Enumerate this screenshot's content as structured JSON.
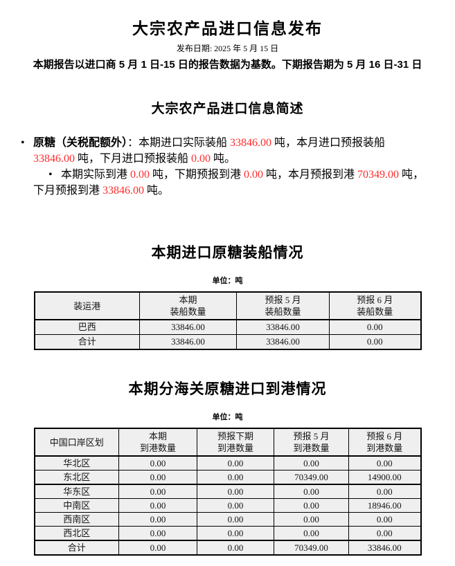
{
  "colors": {
    "highlight_red": "#ff2b2b",
    "cell_bg": "#efefef",
    "border": "#000000"
  },
  "document": {
    "title": "大宗农产品进口信息发布",
    "publish_date": "发布日期: 2025 年 5 月 15 日",
    "report_note": "本期报告以进口商 5 月 1 日-15 日的报告数据为基数。下期报告期为 5 月 16 日-31 日"
  },
  "summary": {
    "title": "大宗农产品进口信息简述",
    "bullets": [
      {
        "indent_first_line": false,
        "segments": [
          {
            "text": "原糖（关税配额外）",
            "bold": true,
            "red": false
          },
          {
            "text": "：本期进口实际装船 ",
            "bold": false,
            "red": false
          },
          {
            "text": "33846.00",
            "bold": false,
            "red": true
          },
          {
            "text": " 吨，本月进口预报装船 ",
            "bold": false,
            "red": false
          },
          {
            "text": "33846.00",
            "bold": false,
            "red": true
          },
          {
            "text": " 吨，下月进口预报装船 ",
            "bold": false,
            "red": false
          },
          {
            "text": "0.00",
            "bold": false,
            "red": true
          },
          {
            "text": " 吨。",
            "bold": false,
            "red": false
          }
        ]
      },
      {
        "indent_first_line": true,
        "segments": [
          {
            "text": "本期实际到港 ",
            "bold": false,
            "red": false
          },
          {
            "text": "0.00",
            "bold": false,
            "red": true
          },
          {
            "text": " 吨，下期预报到港 ",
            "bold": false,
            "red": false
          },
          {
            "text": "0.00",
            "bold": false,
            "red": true
          },
          {
            "text": " 吨，本月预报到港 ",
            "bold": false,
            "red": false
          },
          {
            "text": "70349.00",
            "bold": false,
            "red": true
          },
          {
            "text": " 吨，下月预报到港 ",
            "bold": false,
            "red": false
          },
          {
            "text": "33846.00",
            "bold": false,
            "red": true
          },
          {
            "text": " 吨。",
            "bold": false,
            "red": false
          }
        ]
      }
    ]
  },
  "shipping_table": {
    "title": "本期进口原糖装船情况",
    "unit": "单位：吨",
    "columns": [
      "装运港",
      "本期\n装船数量",
      "预报 5 月\n装船数量",
      "预报 6 月\n装船数量"
    ],
    "rows": [
      {
        "label": "巴西",
        "values": [
          "33846.00",
          "33846.00",
          "0.00"
        ]
      },
      {
        "label": "合计",
        "values": [
          "33846.00",
          "33846.00",
          "0.00"
        ]
      }
    ]
  },
  "arrival_table": {
    "title": "本期分海关原糖进口到港情况",
    "unit": "单位：吨",
    "columns": [
      "中国口岸区划",
      "本期\n到港数量",
      "预报下期\n到港数量",
      "预报 5 月\n到港数量",
      "预报 6 月\n到港数量"
    ],
    "rows": [
      {
        "label": "华北区",
        "values": [
          "0.00",
          "0.00",
          "0.00",
          "0.00"
        ]
      },
      {
        "label": "东北区",
        "values": [
          "0.00",
          "0.00",
          "70349.00",
          "14900.00"
        ],
        "thick_bottom": true
      },
      {
        "label": "华东区",
        "values": [
          "0.00",
          "0.00",
          "0.00",
          "0.00"
        ]
      },
      {
        "label": "中南区",
        "values": [
          "0.00",
          "0.00",
          "0.00",
          "18946.00"
        ]
      },
      {
        "label": "西南区",
        "values": [
          "0.00",
          "0.00",
          "0.00",
          "0.00"
        ]
      },
      {
        "label": "西北区",
        "values": [
          "0.00",
          "0.00",
          "0.00",
          "0.00"
        ]
      },
      {
        "label": "合计",
        "values": [
          "0.00",
          "0.00",
          "70349.00",
          "33846.00"
        ],
        "thick_top": true
      }
    ]
  }
}
